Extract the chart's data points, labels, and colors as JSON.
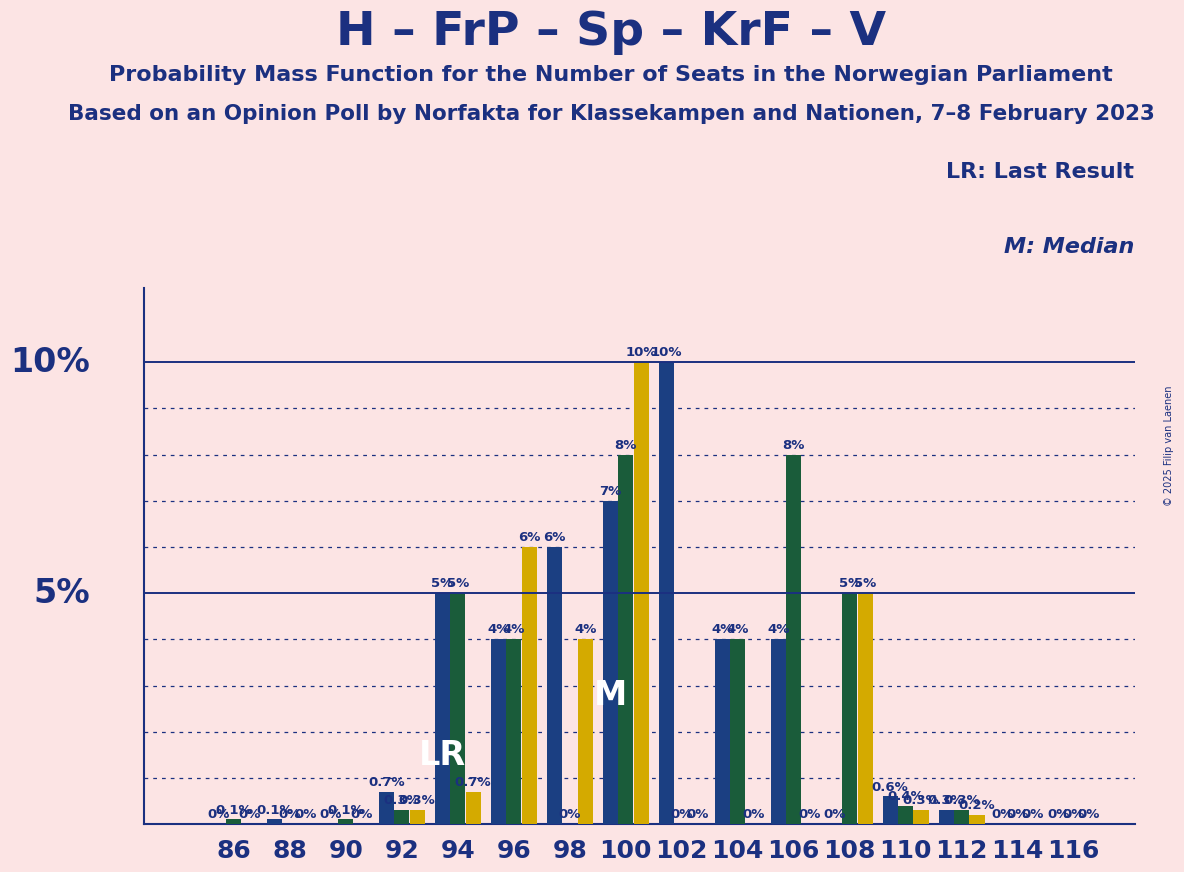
{
  "title": "H – FrP – Sp – KrF – V",
  "subtitle1": "Probability Mass Function for the Number of Seats in the Norwegian Parliament",
  "subtitle2": "Based on an Opinion Poll by Norfakta for Klassekampen and Nationen, 7–8 February 2023",
  "copyright": "© 2025 Filip van Laenen",
  "background_color": "#fce4e4",
  "seats": [
    86,
    88,
    90,
    92,
    94,
    96,
    98,
    100,
    102,
    104,
    106,
    108,
    110,
    112,
    114,
    116
  ],
  "blue_values": [
    0.0,
    0.001,
    0.0,
    0.007,
    0.05,
    0.04,
    0.06,
    0.07,
    0.1,
    0.04,
    0.04,
    0.0,
    0.006,
    0.003,
    0.0,
    0.0
  ],
  "green_values": [
    0.001,
    0.0,
    0.001,
    0.003,
    0.05,
    0.04,
    0.0,
    0.08,
    0.0,
    0.04,
    0.08,
    0.05,
    0.004,
    0.003,
    0.0,
    0.0
  ],
  "yellow_values": [
    0.0,
    0.0,
    0.0,
    0.003,
    0.007,
    0.06,
    0.04,
    0.1,
    0.0,
    0.0,
    0.0,
    0.05,
    0.003,
    0.002,
    0.0,
    0.0
  ],
  "blue_color": "#1b3f82",
  "green_color": "#1a5c3a",
  "yellow_color": "#d4aa00",
  "lr_seat": 94,
  "median_seat": 100,
  "legend_lr": "LR: Last Result",
  "legend_m": "M: Median",
  "title_color": "#1b3080",
  "hlines_solid": [
    0.05,
    0.1
  ],
  "hlines_dotted": [
    0.01,
    0.02,
    0.03,
    0.04,
    0.06,
    0.07,
    0.08,
    0.09
  ],
  "ylim_max": 0.116,
  "ylabel_5": "5%",
  "ylabel_10": "10%"
}
